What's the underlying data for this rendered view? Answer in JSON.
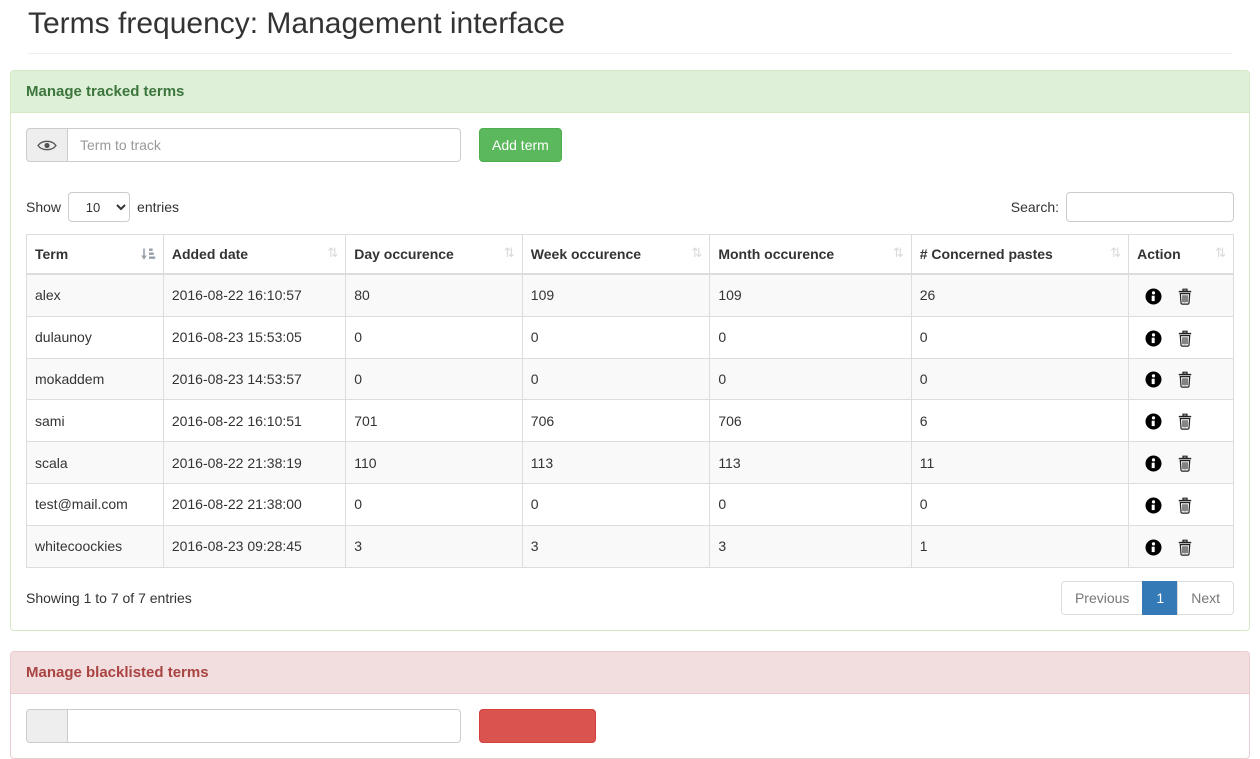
{
  "page": {
    "title": "Terms frequency: Management interface"
  },
  "icons": {
    "sort_glyph": "⇅"
  },
  "colors": {
    "success_bg": "#dff0d8",
    "success_text": "#3c763d",
    "success_border": "#d6e9c6",
    "danger_bg": "#f2dede",
    "danger_text": "#a94442",
    "danger_border": "#ebccd1",
    "btn_success": "#5cb85c",
    "btn_danger": "#d9534f",
    "pagination_active": "#337ab7",
    "stripe": "#f9f9f9",
    "table_border": "#ddd"
  },
  "tracked": {
    "heading": "Manage tracked terms",
    "term_input_placeholder": "Term to track",
    "add_button": "Add term",
    "show_label": "Show",
    "entries_label": "entries",
    "page_length": "10",
    "search_label": "Search:",
    "search_value": "",
    "table": {
      "columns": [
        "Term",
        "Added date",
        "Day occurence",
        "Week occurence",
        "Month occurence",
        "# Concerned pastes",
        "Action"
      ],
      "rows": [
        {
          "term": "alex",
          "added": "2016-08-22 16:10:57",
          "day": "80",
          "week": "109",
          "month": "109",
          "pastes": "26"
        },
        {
          "term": "dulaunoy",
          "added": "2016-08-23 15:53:05",
          "day": "0",
          "week": "0",
          "month": "0",
          "pastes": "0"
        },
        {
          "term": "mokaddem",
          "added": "2016-08-23 14:53:57",
          "day": "0",
          "week": "0",
          "month": "0",
          "pastes": "0"
        },
        {
          "term": "sami",
          "added": "2016-08-22 16:10:51",
          "day": "701",
          "week": "706",
          "month": "706",
          "pastes": "6"
        },
        {
          "term": "scala",
          "added": "2016-08-22 21:38:19",
          "day": "110",
          "week": "113",
          "month": "113",
          "pastes": "11"
        },
        {
          "term": "test@mail.com",
          "added": "2016-08-22 21:38:00",
          "day": "0",
          "week": "0",
          "month": "0",
          "pastes": "0"
        },
        {
          "term": "whitecoockies",
          "added": "2016-08-23 09:28:45",
          "day": "3",
          "week": "3",
          "month": "3",
          "pastes": "1"
        }
      ]
    },
    "info": "Showing 1 to 7 of 7 entries",
    "pagination": {
      "previous": "Previous",
      "page": "1",
      "next": "Next"
    }
  },
  "blacklist": {
    "heading": "Manage blacklisted terms"
  }
}
